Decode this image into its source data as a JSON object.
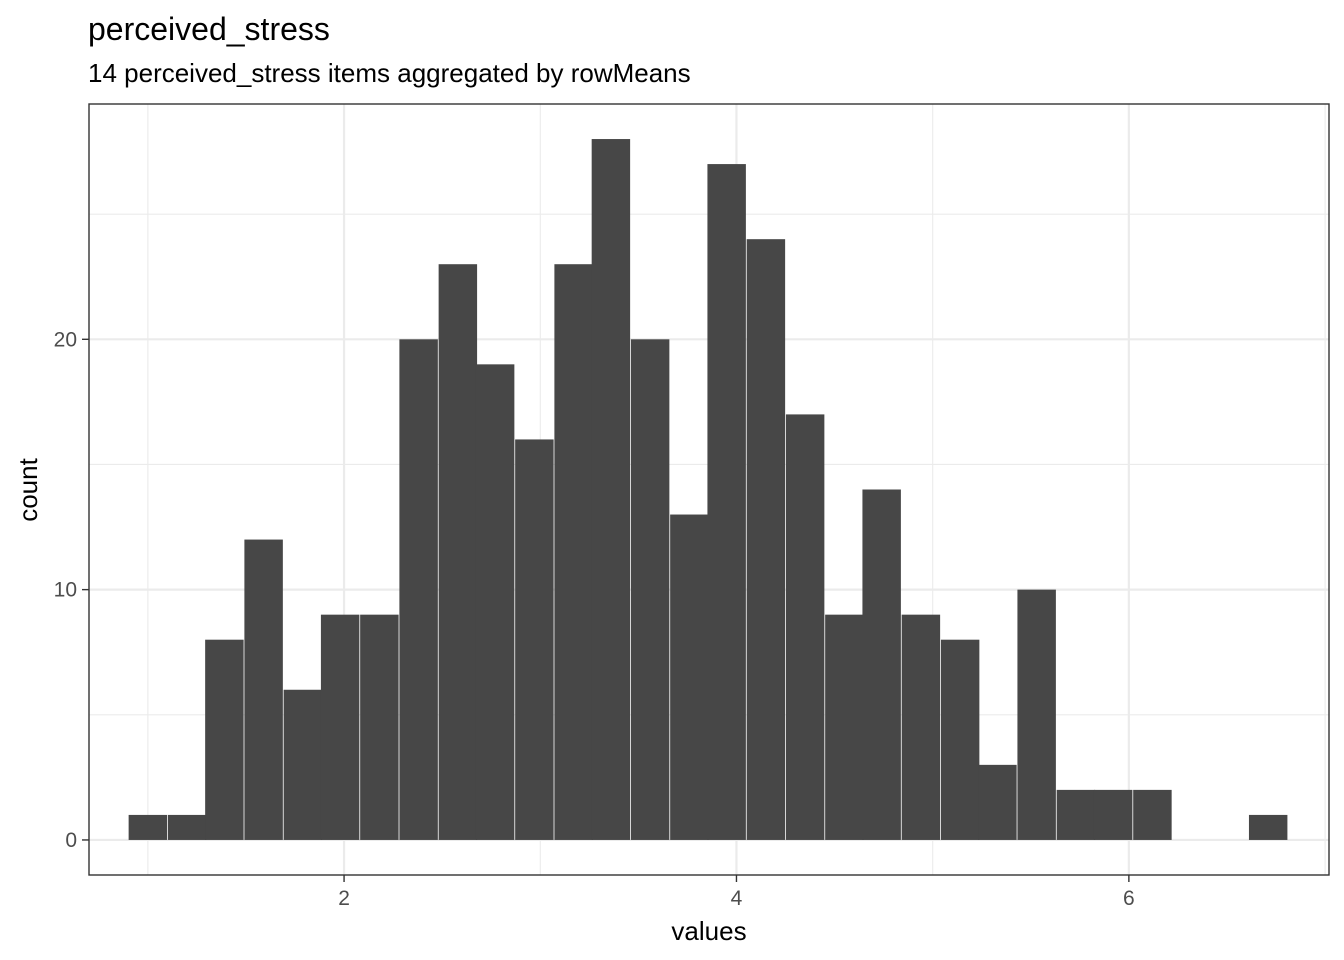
{
  "chart_data": {
    "type": "bar",
    "title": "perceived_stress",
    "subtitle": "14 perceived_stress items aggregated by rowMeans",
    "xlabel": "values",
    "ylabel": "count",
    "bin_width": 0.196,
    "bins": [
      {
        "x": 1.0,
        "count": 1
      },
      {
        "x": 1.2,
        "count": 1
      },
      {
        "x": 1.39,
        "count": 8
      },
      {
        "x": 1.59,
        "count": 12
      },
      {
        "x": 1.79,
        "count": 6
      },
      {
        "x": 1.98,
        "count": 9
      },
      {
        "x": 2.18,
        "count": 9
      },
      {
        "x": 2.38,
        "count": 20
      },
      {
        "x": 2.58,
        "count": 23
      },
      {
        "x": 2.77,
        "count": 19
      },
      {
        "x": 2.97,
        "count": 16
      },
      {
        "x": 3.17,
        "count": 23
      },
      {
        "x": 3.36,
        "count": 28
      },
      {
        "x": 3.56,
        "count": 20
      },
      {
        "x": 3.76,
        "count": 13
      },
      {
        "x": 3.95,
        "count": 27
      },
      {
        "x": 4.15,
        "count": 24
      },
      {
        "x": 4.35,
        "count": 17
      },
      {
        "x": 4.55,
        "count": 9
      },
      {
        "x": 4.74,
        "count": 14
      },
      {
        "x": 4.94,
        "count": 9
      },
      {
        "x": 5.14,
        "count": 8
      },
      {
        "x": 5.33,
        "count": 3
      },
      {
        "x": 5.53,
        "count": 10
      },
      {
        "x": 5.73,
        "count": 2
      },
      {
        "x": 5.92,
        "count": 2
      },
      {
        "x": 6.12,
        "count": 2
      },
      {
        "x": 6.32,
        "count": 0
      },
      {
        "x": 6.52,
        "count": 0
      },
      {
        "x": 6.71,
        "count": 1
      }
    ],
    "xlim": [
      0.7,
      7.02
    ],
    "ylim": [
      -1.4,
      29.4
    ],
    "x_ticks": [
      2,
      4,
      6
    ],
    "x_minor_ticks": [
      1,
      3,
      5,
      7
    ],
    "y_ticks": [
      0,
      10,
      20
    ],
    "y_minor_ticks": [
      5,
      15,
      25
    ],
    "grid": true,
    "bar_color": "#474747",
    "panel_border_color": "#333333",
    "grid_color": "#ebebeb"
  }
}
